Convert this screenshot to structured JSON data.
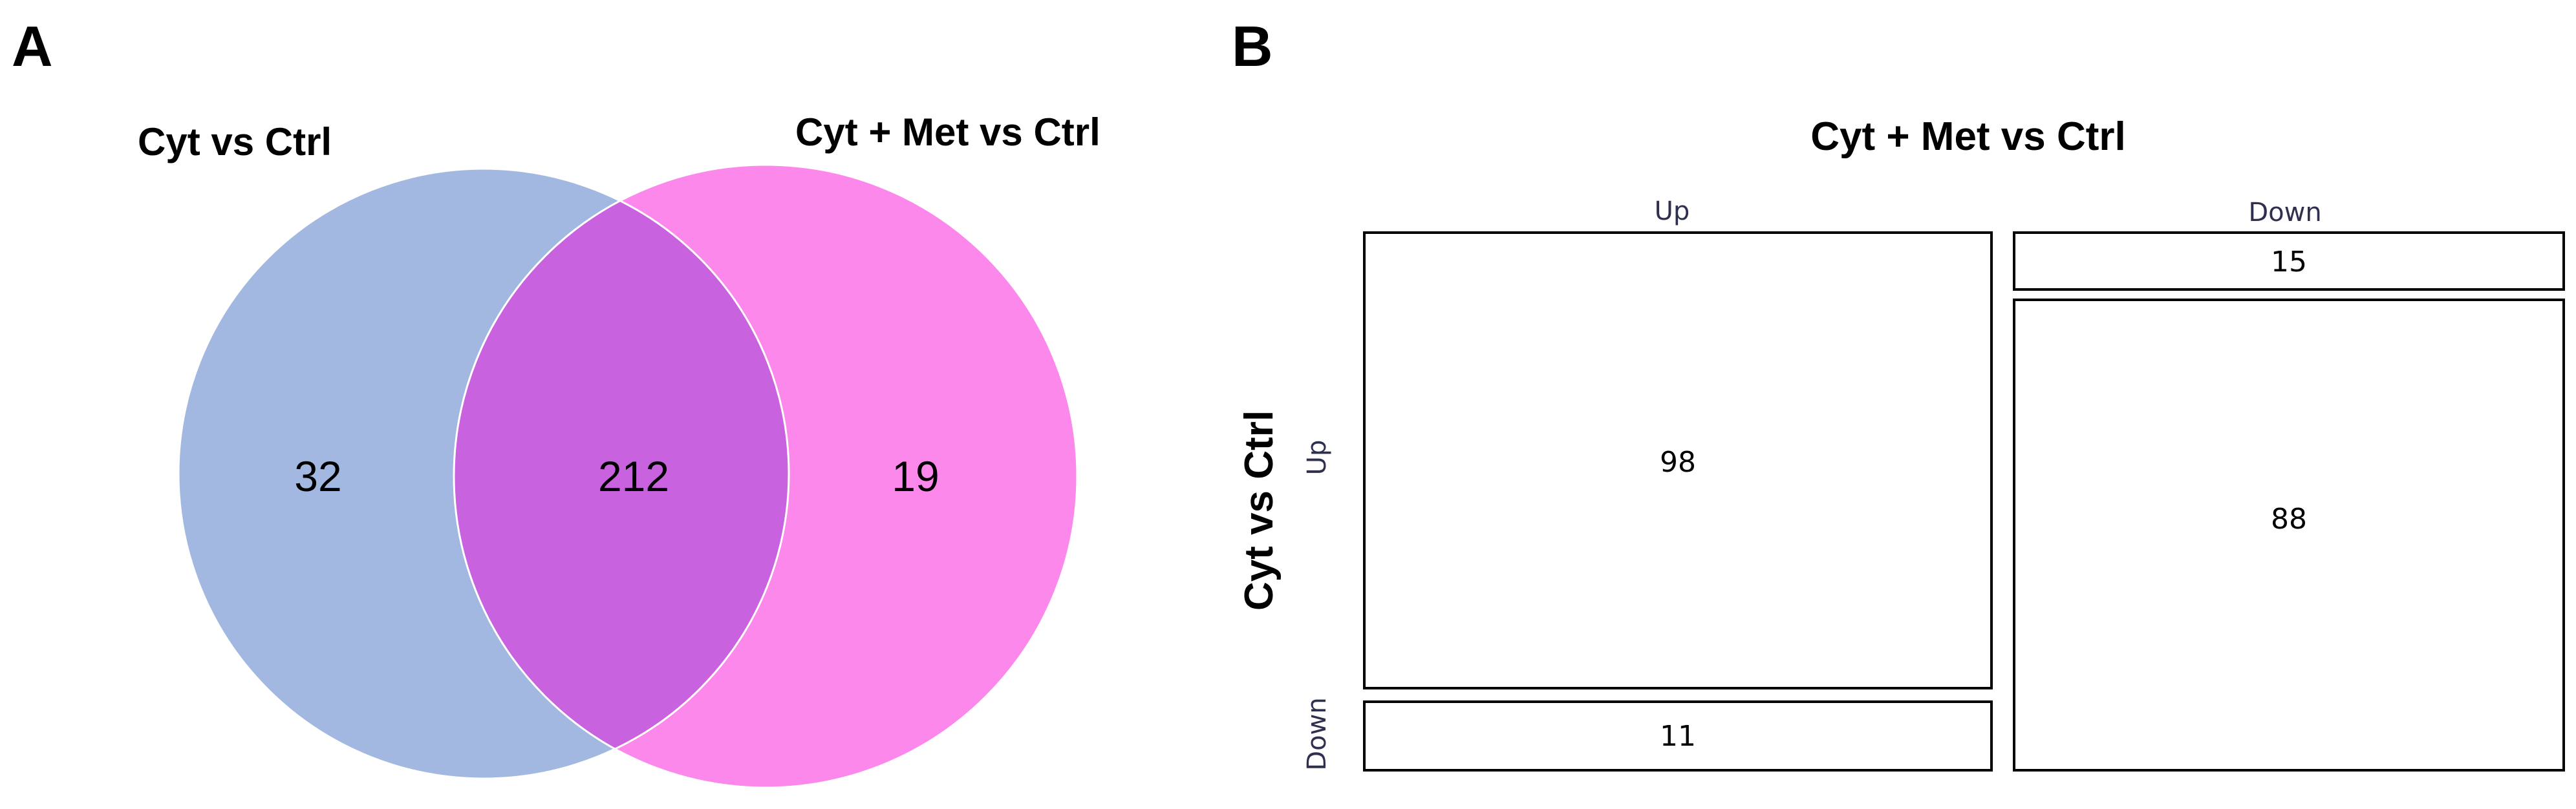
{
  "panels": {
    "a_label": "A",
    "b_label": "B"
  },
  "chart_data": [
    {
      "type": "venn",
      "sets": [
        {
          "name": "Cyt vs Ctrl",
          "color": "#a2b8e0"
        },
        {
          "name": "Cyt + Met vs Ctrl",
          "color": "#fd88ec"
        }
      ],
      "overlap_color": "#c962de",
      "regions": {
        "only_first": "32",
        "intersection": "212",
        "only_second": "19"
      }
    },
    {
      "type": "mosaic",
      "title": "Cyt + Met vs Ctrl",
      "ylabel": "Cyt vs Ctrl",
      "columns": [
        "Up",
        "Down"
      ],
      "rows": [
        "Up",
        "Down"
      ],
      "cells": [
        {
          "column": "Up",
          "row": "Up",
          "value": 98
        },
        {
          "column": "Up",
          "row": "Down",
          "value": 11
        },
        {
          "column": "Down",
          "row": "Up",
          "value": 88
        },
        {
          "column": "Down",
          "row": "Down",
          "value": 15
        }
      ],
      "column_order_of_rows": {
        "Up": [
          "Up",
          "Down"
        ],
        "Down": [
          "Down",
          "Up"
        ]
      }
    }
  ]
}
